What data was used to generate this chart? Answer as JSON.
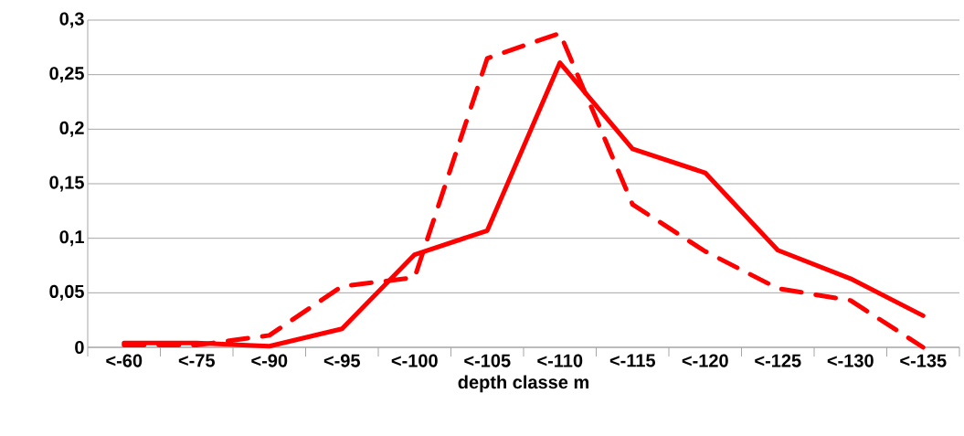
{
  "chart_data": {
    "type": "line",
    "xlabel": "depth classe m",
    "categories": [
      "<-60",
      "<-75",
      "<-90",
      "<-95",
      "<-100",
      "<-105",
      "<-110",
      "<-115",
      "<-120",
      "<-125",
      "<-130",
      "<-135"
    ],
    "series": [
      {
        "color": "#ff0000",
        "line_style": "solid",
        "values": [
          0.004,
          0.004,
          0.001,
          0.017,
          0.085,
          0.107,
          0.261,
          0.182,
          0.16,
          0.089,
          0.063,
          0.029
        ]
      },
      {
        "color": "#ff0000",
        "line_style": "dashed",
        "values": [
          0.002,
          0.002,
          0.011,
          0.056,
          0.064,
          0.265,
          0.288,
          0.131,
          0.088,
          0.054,
          0.043,
          0
        ]
      }
    ],
    "ylim": [
      0,
      0.3
    ],
    "yticks": [
      {
        "value": 0,
        "label": "0"
      },
      {
        "value": 0.05,
        "label": "0,05"
      },
      {
        "value": 0.1,
        "label": "0,1"
      },
      {
        "value": 0.15,
        "label": "0,15"
      },
      {
        "value": 0.2,
        "label": "0,2"
      },
      {
        "value": 0.25,
        "label": "0,25"
      },
      {
        "value": 0.3,
        "label": "0,3"
      }
    ],
    "grid": "y"
  }
}
